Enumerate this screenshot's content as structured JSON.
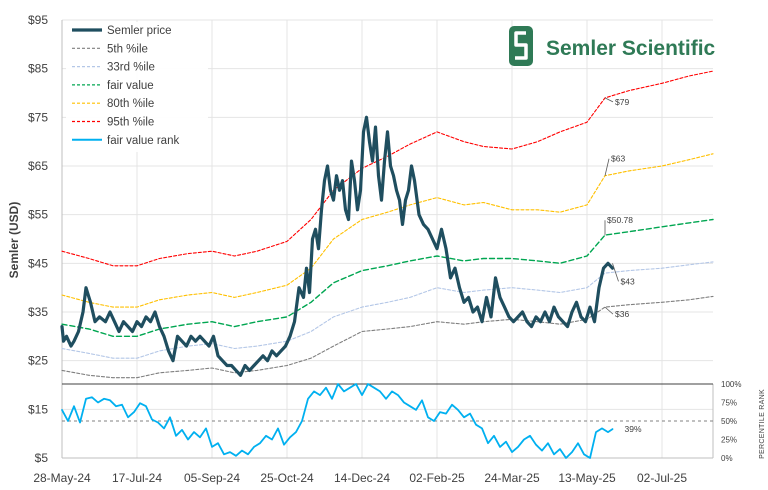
{
  "chart_data": {
    "type": "line",
    "title": "",
    "ylabel": "Semler (USD)",
    "y2label": "PERCENTILE RANK",
    "ylim": [
      5,
      95
    ],
    "y_ticks": [
      "$95",
      "$85",
      "$75",
      "$65",
      "$55",
      "$45",
      "$35",
      "$25",
      "$15",
      "$5"
    ],
    "y_tick_values": [
      95,
      85,
      75,
      65,
      55,
      45,
      35,
      25,
      15,
      5
    ],
    "y2_ticks": [
      "100%",
      "75%",
      "50%",
      "25%",
      "0%"
    ],
    "y2_tick_values": [
      100,
      75,
      50,
      25,
      0
    ],
    "x_ticks": [
      "28-May-24",
      "17-Jul-24",
      "05-Sep-24",
      "25-Oct-24",
      "14-Dec-24",
      "02-Feb-25",
      "24-Mar-25",
      "13-May-25",
      "02-Jul-25"
    ],
    "x_tick_values": [
      "2024-05-28",
      "2024-07-17",
      "2024-09-05",
      "2024-10-25",
      "2024-12-14",
      "2025-02-02",
      "2025-03-24",
      "2025-05-13",
      "2025-07-02"
    ],
    "x_start": "2024-05-28",
    "x_end": "2025-08-05",
    "legend_position": "top-left",
    "logo_text": "Semler Scientific",
    "series": [
      {
        "name": "Semler price",
        "color": "#1f4e5f",
        "style": "solid",
        "width": 3.2,
        "x": [
          "2024-05-28",
          "2024-05-29",
          "2024-05-31",
          "2024-06-03",
          "2024-06-05",
          "2024-06-08",
          "2024-06-11",
          "2024-06-13",
          "2024-06-16",
          "2024-06-19",
          "2024-06-22",
          "2024-06-26",
          "2024-06-29",
          "2024-07-02",
          "2024-07-05",
          "2024-07-08",
          "2024-07-11",
          "2024-07-14",
          "2024-07-17",
          "2024-07-20",
          "2024-07-23",
          "2024-07-26",
          "2024-07-29",
          "2024-08-01",
          "2024-08-04",
          "2024-08-07",
          "2024-08-10",
          "2024-08-13",
          "2024-08-16",
          "2024-08-19",
          "2024-08-22",
          "2024-08-25",
          "2024-08-28",
          "2024-08-31",
          "2024-09-03",
          "2024-09-06",
          "2024-09-09",
          "2024-09-12",
          "2024-09-15",
          "2024-09-18",
          "2024-09-21",
          "2024-09-24",
          "2024-09-27",
          "2024-09-30",
          "2024-10-03",
          "2024-10-06",
          "2024-10-09",
          "2024-10-12",
          "2024-10-15",
          "2024-10-18",
          "2024-10-21",
          "2024-10-24",
          "2024-10-27",
          "2024-10-30",
          "2024-11-02",
          "2024-11-05",
          "2024-11-07",
          "2024-11-09",
          "2024-11-11",
          "2024-11-13",
          "2024-11-15",
          "2024-11-17",
          "2024-11-19",
          "2024-11-21",
          "2024-11-23",
          "2024-11-25",
          "2024-11-27",
          "2024-11-29",
          "2024-12-01",
          "2024-12-03",
          "2024-12-05",
          "2024-12-07",
          "2024-12-09",
          "2024-12-11",
          "2024-12-13",
          "2024-12-15",
          "2024-12-17",
          "2024-12-19",
          "2024-12-21",
          "2024-12-23",
          "2024-12-25",
          "2024-12-27",
          "2024-12-29",
          "2024-12-31",
          "2025-01-02",
          "2025-01-04",
          "2025-01-06",
          "2025-01-08",
          "2025-01-10",
          "2025-01-12",
          "2025-01-14",
          "2025-01-16",
          "2025-01-18",
          "2025-01-21",
          "2025-01-24",
          "2025-01-27",
          "2025-01-30",
          "2025-02-02",
          "2025-02-05",
          "2025-02-08",
          "2025-02-11",
          "2025-02-14",
          "2025-02-17",
          "2025-02-20",
          "2025-02-23",
          "2025-02-26",
          "2025-03-01",
          "2025-03-04",
          "2025-03-07",
          "2025-03-10",
          "2025-03-13",
          "2025-03-16",
          "2025-03-19",
          "2025-03-22",
          "2025-03-25",
          "2025-03-28",
          "2025-03-31",
          "2025-04-03",
          "2025-04-06",
          "2025-04-09",
          "2025-04-12",
          "2025-04-15",
          "2025-04-18",
          "2025-04-21",
          "2025-04-24",
          "2025-04-27",
          "2025-04-30",
          "2025-05-03",
          "2025-05-06",
          "2025-05-09",
          "2025-05-12",
          "2025-05-15",
          "2025-05-18",
          "2025-05-21",
          "2025-05-24",
          "2025-05-27",
          "2025-05-30"
        ],
        "y": [
          32,
          29,
          30,
          28,
          29,
          31,
          35,
          40,
          37,
          33,
          34,
          33,
          35,
          33,
          31,
          33,
          32,
          31,
          33,
          32,
          34,
          33,
          35,
          32,
          30,
          27,
          25,
          30,
          29,
          28,
          30,
          29,
          30,
          29,
          28,
          30,
          26,
          25,
          24,
          24,
          23,
          22,
          24,
          23,
          24,
          25,
          26,
          25,
          27,
          26,
          27,
          28,
          30,
          33,
          40,
          38,
          44,
          39,
          50,
          52,
          48,
          56,
          62,
          65,
          60,
          58,
          63,
          60,
          62,
          56,
          54,
          66,
          62,
          56,
          60,
          72,
          75,
          70,
          66,
          73,
          63,
          58,
          66,
          72,
          65,
          63,
          60,
          58,
          53,
          58,
          60,
          65,
          62,
          55,
          53,
          52,
          50,
          48,
          52,
          48,
          42,
          44,
          40,
          37,
          38,
          35,
          36,
          33,
          38,
          34,
          42,
          38,
          36,
          34,
          33,
          34,
          35,
          33,
          32,
          34,
          33,
          35,
          33,
          36,
          34,
          33,
          32,
          35,
          37,
          34,
          33,
          36,
          33,
          40,
          44,
          45,
          44
        ]
      },
      {
        "name": "5th %ile",
        "color": "#7f7f7f",
        "style": "dashed",
        "width": 1.1,
        "x": [
          "2024-05-28",
          "2024-06-15",
          "2024-07-01",
          "2024-07-17",
          "2024-08-01",
          "2024-08-20",
          "2024-09-05",
          "2024-09-20",
          "2024-10-05",
          "2024-10-25",
          "2024-11-10",
          "2024-11-25",
          "2024-12-14",
          "2024-12-31",
          "2025-01-15",
          "2025-02-02",
          "2025-02-20",
          "2025-03-05",
          "2025-03-24",
          "2025-04-10",
          "2025-04-25",
          "2025-05-13",
          "2025-05-25",
          "2025-06-10",
          "2025-07-02",
          "2025-07-20",
          "2025-08-05"
        ],
        "y": [
          23,
          22,
          21.5,
          21.5,
          22.5,
          23,
          23.5,
          22.5,
          23,
          24,
          25.5,
          28,
          31,
          31.5,
          32,
          33,
          32.5,
          33,
          33.5,
          33,
          32.5,
          33.5,
          36,
          36.5,
          37,
          37.5,
          38.2
        ]
      },
      {
        "name": "33rd %ile",
        "color": "#b4c7e7",
        "style": "dashed",
        "width": 1.1,
        "x": [
          "2024-05-28",
          "2024-06-15",
          "2024-07-01",
          "2024-07-17",
          "2024-08-01",
          "2024-08-20",
          "2024-09-05",
          "2024-09-20",
          "2024-10-05",
          "2024-10-25",
          "2024-11-10",
          "2024-11-25",
          "2024-12-14",
          "2024-12-31",
          "2025-01-15",
          "2025-02-02",
          "2025-02-20",
          "2025-03-05",
          "2025-03-24",
          "2025-04-10",
          "2025-04-25",
          "2025-05-13",
          "2025-05-25",
          "2025-06-10",
          "2025-07-02",
          "2025-07-20",
          "2025-08-05"
        ],
        "y": [
          27.5,
          26.5,
          25.5,
          25.5,
          27,
          28,
          28.5,
          27.5,
          28,
          29,
          31,
          34,
          36,
          37,
          38,
          40,
          39,
          39.5,
          40,
          39.5,
          39,
          40,
          43,
          43.5,
          44,
          44.7,
          45.3
        ]
      },
      {
        "name": "fair value",
        "color": "#00a651",
        "style": "dashed",
        "width": 1.4,
        "x": [
          "2024-05-28",
          "2024-06-15",
          "2024-07-01",
          "2024-07-17",
          "2024-08-01",
          "2024-08-20",
          "2024-09-05",
          "2024-09-20",
          "2024-10-05",
          "2024-10-25",
          "2024-11-10",
          "2024-11-25",
          "2024-12-14",
          "2024-12-31",
          "2025-01-15",
          "2025-02-02",
          "2025-02-20",
          "2025-03-05",
          "2025-03-24",
          "2025-04-10",
          "2025-04-25",
          "2025-05-13",
          "2025-05-25",
          "2025-06-10",
          "2025-07-02",
          "2025-07-20",
          "2025-08-05"
        ],
        "y": [
          32.5,
          31.5,
          30,
          30,
          31.5,
          32.5,
          33,
          32,
          33,
          34,
          37,
          41,
          43.5,
          44.5,
          45.5,
          46.5,
          45.5,
          46,
          46,
          45.5,
          45,
          46.5,
          50.8,
          51.5,
          52.5,
          53.3,
          54
        ]
      },
      {
        "name": "80th %ile",
        "color": "#ffc000",
        "style": "dashed",
        "width": 1.1,
        "x": [
          "2024-05-28",
          "2024-06-15",
          "2024-07-01",
          "2024-07-17",
          "2024-08-01",
          "2024-08-20",
          "2024-09-05",
          "2024-09-20",
          "2024-10-05",
          "2024-10-25",
          "2024-11-10",
          "2024-11-25",
          "2024-12-14",
          "2024-12-31",
          "2025-01-15",
          "2025-02-02",
          "2025-02-20",
          "2025-03-05",
          "2025-03-24",
          "2025-04-10",
          "2025-04-25",
          "2025-05-13",
          "2025-05-25",
          "2025-06-10",
          "2025-07-02",
          "2025-07-20",
          "2025-08-05"
        ],
        "y": [
          38.5,
          37,
          36,
          36,
          37.5,
          38.5,
          39,
          38,
          39,
          40.5,
          44,
          50,
          54,
          55.5,
          57,
          58.5,
          57,
          57.5,
          56,
          56,
          55.5,
          57,
          63,
          64,
          65,
          66.3,
          67.5
        ]
      },
      {
        "name": "95th %ile",
        "color": "#ff0000",
        "style": "dashed",
        "width": 1.1,
        "x": [
          "2024-05-28",
          "2024-06-15",
          "2024-07-01",
          "2024-07-17",
          "2024-08-01",
          "2024-08-20",
          "2024-09-05",
          "2024-09-20",
          "2024-10-05",
          "2024-10-25",
          "2024-11-10",
          "2024-11-25",
          "2024-12-14",
          "2024-12-31",
          "2025-01-15",
          "2025-02-02",
          "2025-02-20",
          "2025-03-05",
          "2025-03-24",
          "2025-04-10",
          "2025-04-25",
          "2025-05-13",
          "2025-05-25",
          "2025-06-10",
          "2025-07-02",
          "2025-07-20",
          "2025-08-05"
        ],
        "y": [
          47.5,
          46,
          44.5,
          44.5,
          46,
          47,
          47.5,
          46.5,
          47.5,
          49.5,
          54,
          60,
          64.5,
          67,
          69.5,
          72,
          70,
          69,
          68.5,
          70,
          72,
          74,
          79,
          80.5,
          82,
          83.5,
          84.5
        ]
      },
      {
        "name": "fair value rank",
        "color": "#00b0f0",
        "style": "solid",
        "width": 1.8,
        "axis": "secondary",
        "x": [
          "2024-05-28",
          "2024-06-01",
          "2024-06-05",
          "2024-06-09",
          "2024-06-13",
          "2024-06-17",
          "2024-06-21",
          "2024-06-25",
          "2024-06-29",
          "2024-07-03",
          "2024-07-07",
          "2024-07-11",
          "2024-07-15",
          "2024-07-19",
          "2024-07-23",
          "2024-07-27",
          "2024-07-31",
          "2024-08-04",
          "2024-08-08",
          "2024-08-12",
          "2024-08-16",
          "2024-08-20",
          "2024-08-24",
          "2024-08-28",
          "2024-09-01",
          "2024-09-05",
          "2024-09-09",
          "2024-09-13",
          "2024-09-17",
          "2024-09-21",
          "2024-09-25",
          "2024-09-29",
          "2024-10-03",
          "2024-10-07",
          "2024-10-11",
          "2024-10-15",
          "2024-10-19",
          "2024-10-23",
          "2024-10-27",
          "2024-10-31",
          "2024-11-04",
          "2024-11-08",
          "2024-11-12",
          "2024-11-16",
          "2024-11-20",
          "2024-11-24",
          "2024-11-28",
          "2024-12-02",
          "2024-12-06",
          "2024-12-10",
          "2024-12-14",
          "2024-12-18",
          "2024-12-22",
          "2024-12-26",
          "2024-12-30",
          "2025-01-03",
          "2025-01-07",
          "2025-01-11",
          "2025-01-15",
          "2025-01-19",
          "2025-01-23",
          "2025-01-27",
          "2025-01-31",
          "2025-02-04",
          "2025-02-08",
          "2025-02-12",
          "2025-02-16",
          "2025-02-20",
          "2025-02-24",
          "2025-02-28",
          "2025-03-04",
          "2025-03-08",
          "2025-03-12",
          "2025-03-16",
          "2025-03-20",
          "2025-03-24",
          "2025-03-28",
          "2025-04-01",
          "2025-04-05",
          "2025-04-09",
          "2025-04-13",
          "2025-04-17",
          "2025-04-21",
          "2025-04-25",
          "2025-04-29",
          "2025-05-03",
          "2025-05-07",
          "2025-05-11",
          "2025-05-15",
          "2025-05-19",
          "2025-05-23",
          "2025-05-27",
          "2025-05-30"
        ],
        "y": [
          65,
          50,
          70,
          48,
          80,
          82,
          75,
          80,
          78,
          70,
          72,
          55,
          62,
          74,
          70,
          52,
          48,
          40,
          55,
          30,
          38,
          25,
          35,
          28,
          40,
          15,
          20,
          5,
          8,
          3,
          10,
          5,
          15,
          20,
          30,
          25,
          40,
          18,
          28,
          35,
          50,
          80,
          90,
          85,
          95,
          80,
          100,
          90,
          95,
          100,
          85,
          100,
          95,
          90,
          80,
          90,
          85,
          75,
          70,
          65,
          78,
          55,
          50,
          62,
          60,
          72,
          65,
          55,
          60,
          45,
          40,
          20,
          30,
          15,
          22,
          8,
          15,
          25,
          30,
          18,
          10,
          20,
          5,
          12,
          0,
          8,
          20,
          5,
          0,
          35,
          40,
          35,
          39
        ]
      }
    ],
    "reference_lines": [
      {
        "axis": "secondary",
        "value": 50,
        "color": "#808080",
        "style": "dashed"
      }
    ],
    "annotations": [
      {
        "text": "$79",
        "x": "2025-05-25",
        "y": 79
      },
      {
        "text": "$63",
        "x": "2025-05-25",
        "y": 63
      },
      {
        "text": "$50.78",
        "x": "2025-05-25",
        "y": 50.78
      },
      {
        "text": "$43",
        "x": "2025-05-30",
        "y": 45
      },
      {
        "text": "$36",
        "x": "2025-05-25",
        "y": 36
      },
      {
        "text": "39%",
        "x": "2025-05-30",
        "y2": 39
      }
    ]
  }
}
